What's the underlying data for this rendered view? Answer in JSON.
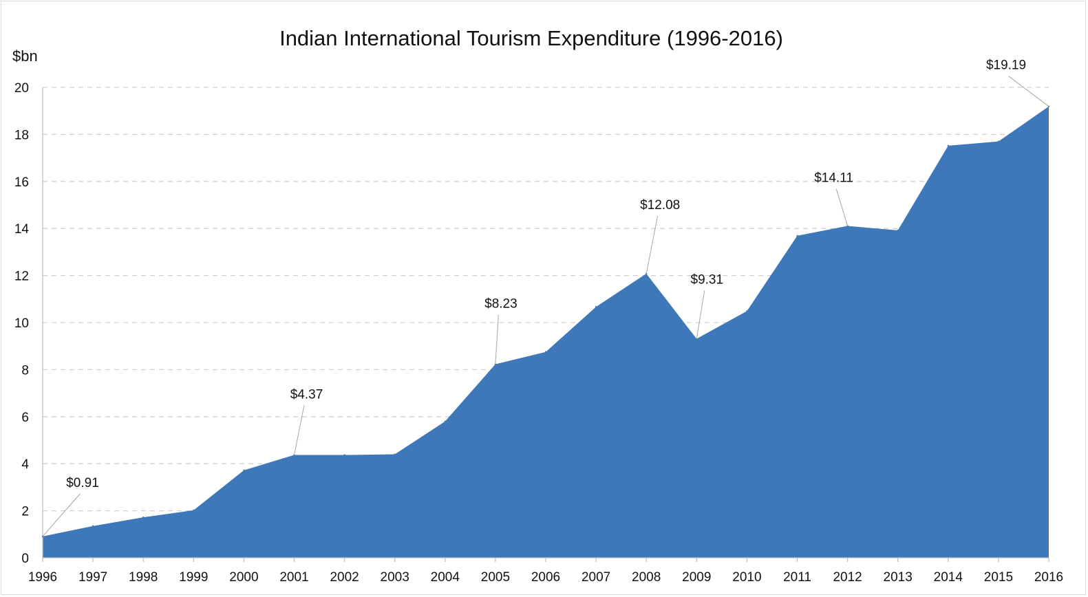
{
  "chart_data": {
    "type": "area",
    "title": "Indian International Tourism Expenditure (1996-2016)",
    "xlabel": "",
    "ylabel": "$bn",
    "ylim": [
      0,
      20
    ],
    "yticks": [
      0,
      2,
      4,
      6,
      8,
      10,
      12,
      14,
      16,
      18,
      20
    ],
    "grid": true,
    "legend": "none",
    "colors": {
      "area": "#3f78b8"
    },
    "categories": [
      "1996",
      "1997",
      "1998",
      "1999",
      "2000",
      "2001",
      "2002",
      "2003",
      "2004",
      "2005",
      "2006",
      "2007",
      "2008",
      "2009",
      "2010",
      "2011",
      "2012",
      "2013",
      "2014",
      "2015",
      "2016"
    ],
    "series": [
      {
        "values": [
          0.91,
          1.35,
          1.72,
          2.02,
          3.72,
          4.37,
          4.37,
          4.4,
          5.8,
          8.23,
          8.75,
          10.67,
          12.08,
          9.31,
          10.49,
          13.69,
          14.11,
          13.92,
          17.52,
          17.7,
          19.19
        ]
      }
    ],
    "annotations": [
      {
        "category": "1996",
        "value": 0.91,
        "text": "$0.91"
      },
      {
        "category": "2001",
        "value": 4.37,
        "text": "$4.37"
      },
      {
        "category": "2005",
        "value": 8.23,
        "text": "$8.23"
      },
      {
        "category": "2008",
        "value": 12.08,
        "text": "$12.08"
      },
      {
        "category": "2009",
        "value": 9.31,
        "text": "$9.31"
      },
      {
        "category": "2012",
        "value": 14.11,
        "text": "$14.11"
      },
      {
        "category": "2016",
        "value": 19.19,
        "text": "$19.19"
      }
    ]
  }
}
